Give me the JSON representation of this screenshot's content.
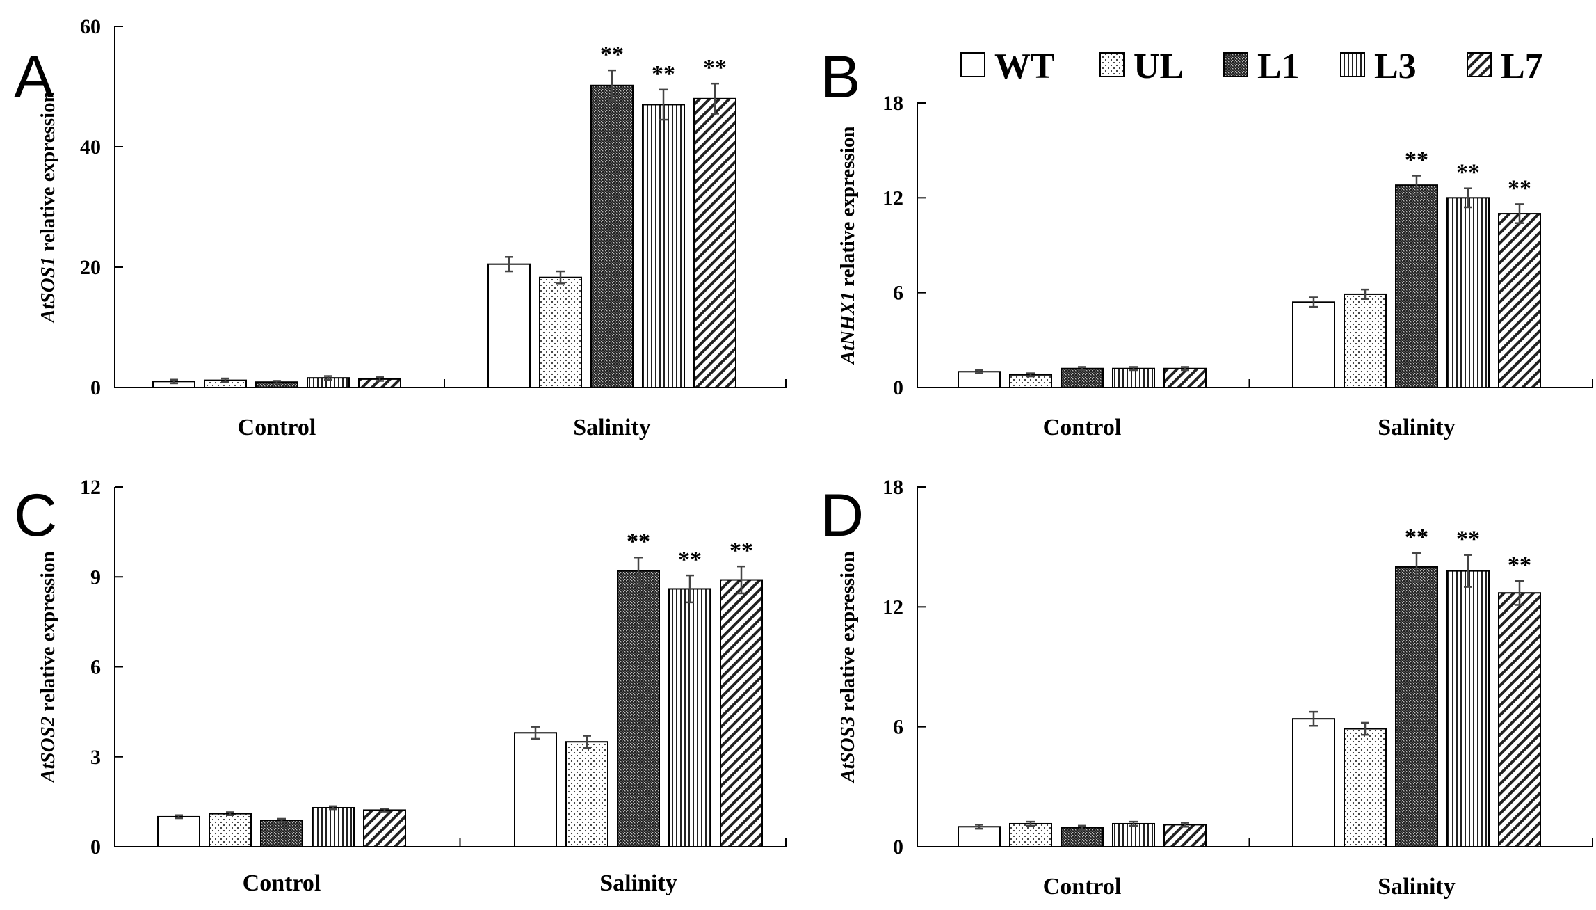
{
  "legend": {
    "series": [
      {
        "name": "WT",
        "pattern": "blank"
      },
      {
        "name": "UL",
        "pattern": "dots"
      },
      {
        "name": "L1",
        "pattern": "dense-dots"
      },
      {
        "name": "L3",
        "pattern": "vertical-lines"
      },
      {
        "name": "L7",
        "pattern": "diagonal-lines"
      }
    ]
  },
  "chart_data": [
    {
      "panel": "A",
      "type": "bar",
      "ylabel_gene": "AtSOS1",
      "ylabel_text": " relative expression",
      "ylim": [
        0,
        60
      ],
      "yticks": [
        0,
        20,
        40,
        60
      ],
      "categories": [
        "Control",
        "Salinity"
      ],
      "series": [
        {
          "name": "WT",
          "values": [
            1.0,
            20.5
          ],
          "errors": [
            0.3,
            1.2
          ],
          "sig": [
            "",
            ""
          ]
        },
        {
          "name": "UL",
          "values": [
            1.2,
            18.3
          ],
          "errors": [
            0.3,
            1.0
          ],
          "sig": [
            "",
            ""
          ]
        },
        {
          "name": "L1",
          "values": [
            0.9,
            50.2
          ],
          "errors": [
            0.2,
            2.5
          ],
          "sig": [
            "",
            "**"
          ]
        },
        {
          "name": "L3",
          "values": [
            1.6,
            47.0
          ],
          "errors": [
            0.3,
            2.5
          ],
          "sig": [
            "",
            "**"
          ]
        },
        {
          "name": "L7",
          "values": [
            1.4,
            48.0
          ],
          "errors": [
            0.3,
            2.5
          ],
          "sig": [
            "",
            "**"
          ]
        }
      ]
    },
    {
      "panel": "B",
      "type": "bar",
      "ylabel_gene": "AtNHX1",
      "ylabel_text": " relative expression",
      "ylim": [
        0,
        18
      ],
      "yticks": [
        0,
        6,
        12,
        18
      ],
      "categories": [
        "Control",
        "Salinity"
      ],
      "series": [
        {
          "name": "WT",
          "values": [
            1.0,
            5.4
          ],
          "errors": [
            0.1,
            0.3
          ],
          "sig": [
            "",
            ""
          ]
        },
        {
          "name": "UL",
          "values": [
            0.8,
            5.9
          ],
          "errors": [
            0.1,
            0.3
          ],
          "sig": [
            "",
            ""
          ]
        },
        {
          "name": "L1",
          "values": [
            1.2,
            12.8
          ],
          "errors": [
            0.1,
            0.6
          ],
          "sig": [
            "",
            "**"
          ]
        },
        {
          "name": "L3",
          "values": [
            1.2,
            12.0
          ],
          "errors": [
            0.1,
            0.6
          ],
          "sig": [
            "",
            "**"
          ]
        },
        {
          "name": "L7",
          "values": [
            1.2,
            11.0
          ],
          "errors": [
            0.1,
            0.6
          ],
          "sig": [
            "",
            "**"
          ]
        }
      ]
    },
    {
      "panel": "C",
      "type": "bar",
      "ylabel_gene": "AtSOS2",
      "ylabel_text": " relative expression",
      "ylim": [
        0,
        12
      ],
      "yticks": [
        0,
        3,
        6,
        9,
        12
      ],
      "categories": [
        "Control",
        "Salinity"
      ],
      "series": [
        {
          "name": "WT",
          "values": [
            1.0,
            3.8
          ],
          "errors": [
            0.05,
            0.2
          ],
          "sig": [
            "",
            ""
          ]
        },
        {
          "name": "UL",
          "values": [
            1.1,
            3.5
          ],
          "errors": [
            0.05,
            0.2
          ],
          "sig": [
            "",
            ""
          ]
        },
        {
          "name": "L1",
          "values": [
            0.88,
            9.2
          ],
          "errors": [
            0.05,
            0.45
          ],
          "sig": [
            "",
            "**"
          ]
        },
        {
          "name": "L3",
          "values": [
            1.3,
            8.6
          ],
          "errors": [
            0.05,
            0.45
          ],
          "sig": [
            "",
            "**"
          ]
        },
        {
          "name": "L7",
          "values": [
            1.22,
            8.9
          ],
          "errors": [
            0.05,
            0.45
          ],
          "sig": [
            "",
            "**"
          ]
        }
      ]
    },
    {
      "panel": "D",
      "type": "bar",
      "ylabel_gene": "AtSOS3",
      "ylabel_text": " relative expression",
      "ylim": [
        0,
        18
      ],
      "yticks": [
        0,
        6,
        12,
        18
      ],
      "categories": [
        "Control",
        "Salinity"
      ],
      "series": [
        {
          "name": "WT",
          "values": [
            1.0,
            6.4
          ],
          "errors": [
            0.1,
            0.35
          ],
          "sig": [
            "",
            ""
          ]
        },
        {
          "name": "UL",
          "values": [
            1.15,
            5.9
          ],
          "errors": [
            0.1,
            0.3
          ],
          "sig": [
            "",
            ""
          ]
        },
        {
          "name": "L1",
          "values": [
            0.95,
            14.0
          ],
          "errors": [
            0.1,
            0.7
          ],
          "sig": [
            "",
            "**"
          ]
        },
        {
          "name": "L3",
          "values": [
            1.15,
            13.8
          ],
          "errors": [
            0.1,
            0.8
          ],
          "sig": [
            "",
            "**"
          ]
        },
        {
          "name": "L7",
          "values": [
            1.1,
            12.7
          ],
          "errors": [
            0.1,
            0.6
          ],
          "sig": [
            "",
            "**"
          ]
        }
      ]
    }
  ]
}
